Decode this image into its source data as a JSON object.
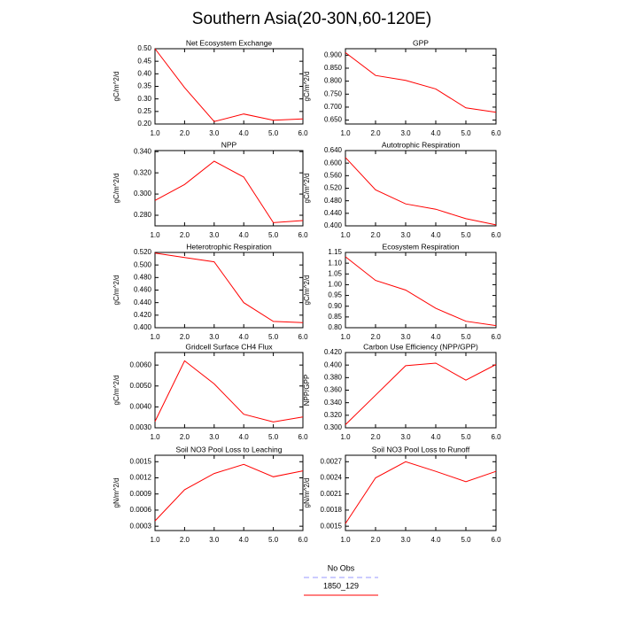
{
  "title": "Southern Asia(20-30N,60-120E)",
  "legend": [
    {
      "name": "No Obs",
      "color": "#9999ff",
      "dash": true
    },
    {
      "name": "1850_129",
      "color": "#ff0000",
      "dash": false
    }
  ],
  "chart_data": [
    {
      "type": "line",
      "title": "Net Ecosystem Exchange",
      "y_label": "gC/m^2/d",
      "color": "#ff0000",
      "x": [
        1,
        2,
        3,
        4,
        5,
        6
      ],
      "values": [
        0.5,
        0.345,
        0.21,
        0.24,
        0.215,
        0.22
      ],
      "xlim": [
        1,
        6
      ],
      "xticks": [
        {
          "value": 1,
          "label": "1.0"
        },
        {
          "value": 2,
          "label": "2.0"
        },
        {
          "value": 3,
          "label": "3.0"
        },
        {
          "value": 4,
          "label": "4.0"
        },
        {
          "value": 5,
          "label": "5.0"
        },
        {
          "value": 6,
          "label": "6.0"
        }
      ],
      "ylim": [
        0.2,
        0.5
      ],
      "yticks": [
        {
          "value": 0.2,
          "label": "0.20"
        },
        0.25,
        {
          "value": 0.3,
          "label": "0.30"
        },
        0.35,
        {
          "value": 0.4,
          "label": "0.40"
        },
        0.45,
        {
          "value": 0.5,
          "label": "0.50"
        }
      ]
    },
    {
      "type": "line",
      "title": "GPP",
      "y_label": "gC/m^2/d",
      "color": "#ff0000",
      "x": [
        1,
        2,
        3,
        4,
        5,
        6
      ],
      "values": [
        0.91,
        0.822,
        0.803,
        0.77,
        0.697,
        0.68
      ],
      "xlim": [
        1,
        6
      ],
      "xticks": [
        {
          "value": 1,
          "label": "1.0"
        },
        {
          "value": 2,
          "label": "2.0"
        },
        {
          "value": 3,
          "label": "3.0"
        },
        {
          "value": 4,
          "label": "4.0"
        },
        {
          "value": 5,
          "label": "5.0"
        },
        {
          "value": 6,
          "label": "6.0"
        }
      ],
      "ylim": [
        0.635,
        0.925
      ],
      "yticks": [
        {
          "value": 0.65,
          "label": "0.650"
        },
        {
          "value": 0.7,
          "label": "0.700"
        },
        {
          "value": 0.75,
          "label": "0.750"
        },
        {
          "value": 0.8,
          "label": "0.800"
        },
        {
          "value": 0.85,
          "label": "0.850"
        },
        {
          "value": 0.9,
          "label": "0.900"
        }
      ]
    },
    {
      "type": "line",
      "title": "NPP",
      "y_label": "gC/m^2/d",
      "color": "#ff0000",
      "x": [
        1,
        2,
        3,
        4,
        5,
        6
      ],
      "values": [
        0.294,
        0.309,
        0.331,
        0.316,
        0.273,
        0.275
      ],
      "xlim": [
        1,
        6
      ],
      "xticks": [
        {
          "value": 1,
          "label": "1.0"
        },
        {
          "value": 2,
          "label": "2.0"
        },
        {
          "value": 3,
          "label": "3.0"
        },
        {
          "value": 4,
          "label": "4.0"
        },
        {
          "value": 5,
          "label": "5.0"
        },
        {
          "value": 6,
          "label": "6.0"
        }
      ],
      "ylim": [
        0.27,
        0.341
      ],
      "yticks": [
        {
          "value": 0.28,
          "label": "0.280"
        },
        {
          "value": 0.3,
          "label": "0.300"
        },
        {
          "value": 0.32,
          "label": "0.320"
        },
        {
          "value": 0.34,
          "label": "0.340"
        }
      ]
    },
    {
      "type": "line",
      "title": "Autotrophic Respiration",
      "y_label": "gC/m^2/d",
      "color": "#ff0000",
      "x": [
        1,
        2,
        3,
        4,
        5,
        6
      ],
      "values": [
        0.618,
        0.515,
        0.47,
        0.453,
        0.423,
        0.403
      ],
      "xlim": [
        1,
        6
      ],
      "xticks": [
        {
          "value": 1,
          "label": "1.0"
        },
        {
          "value": 2,
          "label": "2.0"
        },
        {
          "value": 3,
          "label": "3.0"
        },
        {
          "value": 4,
          "label": "4.0"
        },
        {
          "value": 5,
          "label": "5.0"
        },
        {
          "value": 6,
          "label": "6.0"
        }
      ],
      "ylim": [
        0.4,
        0.64
      ],
      "yticks": [
        {
          "value": 0.4,
          "label": "0.400"
        },
        {
          "value": 0.44,
          "label": "0.440"
        },
        {
          "value": 0.48,
          "label": "0.480"
        },
        {
          "value": 0.52,
          "label": "0.520"
        },
        {
          "value": 0.56,
          "label": "0.560"
        },
        {
          "value": 0.6,
          "label": "0.600"
        },
        {
          "value": 0.64,
          "label": "0.640"
        }
      ]
    },
    {
      "type": "line",
      "title": "Heterotrophic Respiration",
      "y_label": "gC/m^2/d",
      "color": "#ff0000",
      "x": [
        1,
        2,
        3,
        4,
        5,
        6
      ],
      "values": [
        0.519,
        0.512,
        0.505,
        0.44,
        0.41,
        0.408
      ],
      "xlim": [
        1,
        6
      ],
      "xticks": [
        {
          "value": 1,
          "label": "1.0"
        },
        {
          "value": 2,
          "label": "2.0"
        },
        {
          "value": 3,
          "label": "3.0"
        },
        {
          "value": 4,
          "label": "4.0"
        },
        {
          "value": 5,
          "label": "5.0"
        },
        {
          "value": 6,
          "label": "6.0"
        }
      ],
      "ylim": [
        0.4,
        0.52
      ],
      "yticks": [
        {
          "value": 0.4,
          "label": "0.400"
        },
        {
          "value": 0.42,
          "label": "0.420"
        },
        {
          "value": 0.44,
          "label": "0.440"
        },
        {
          "value": 0.46,
          "label": "0.460"
        },
        {
          "value": 0.48,
          "label": "0.480"
        },
        {
          "value": 0.5,
          "label": "0.500"
        },
        {
          "value": 0.52,
          "label": "0.520"
        }
      ]
    },
    {
      "type": "line",
      "title": "Ecosystem Respiration",
      "y_label": "gC/m^2/d",
      "color": "#ff0000",
      "x": [
        1,
        2,
        3,
        4,
        5,
        6
      ],
      "values": [
        1.13,
        1.02,
        0.975,
        0.89,
        0.83,
        0.81
      ],
      "xlim": [
        1,
        6
      ],
      "xticks": [
        {
          "value": 1,
          "label": "1.0"
        },
        {
          "value": 2,
          "label": "2.0"
        },
        {
          "value": 3,
          "label": "3.0"
        },
        {
          "value": 4,
          "label": "4.0"
        },
        {
          "value": 5,
          "label": "5.0"
        },
        {
          "value": 6,
          "label": "6.0"
        }
      ],
      "ylim": [
        0.8,
        1.15
      ],
      "yticks": [
        {
          "value": 0.8,
          "label": "0.80"
        },
        0.85,
        {
          "value": 0.9,
          "label": "0.90"
        },
        0.95,
        {
          "value": 1,
          "label": "1.00"
        },
        1.05,
        {
          "value": 1.1,
          "label": "1.10"
        },
        1.15
      ]
    },
    {
      "type": "line",
      "title": "Gridcell Surface CH4 Flux",
      "y_label": "gC/m^2/d",
      "color": "#ff0000",
      "x": [
        1,
        2,
        3,
        4,
        5,
        6
      ],
      "values": [
        0.0033,
        0.0062,
        0.0051,
        0.00365,
        0.00328,
        0.00352
      ],
      "xlim": [
        1,
        6
      ],
      "xticks": [
        {
          "value": 1,
          "label": "1.0"
        },
        {
          "value": 2,
          "label": "2.0"
        },
        {
          "value": 3,
          "label": "3.0"
        },
        {
          "value": 4,
          "label": "4.0"
        },
        {
          "value": 5,
          "label": "5.0"
        },
        {
          "value": 6,
          "label": "6.0"
        }
      ],
      "ylim": [
        0.003,
        0.0066
      ],
      "yticks": [
        {
          "value": 0.003,
          "label": "0.0030"
        },
        {
          "value": 0.004,
          "label": "0.0040"
        },
        {
          "value": 0.005,
          "label": "0.0050"
        },
        {
          "value": 0.006,
          "label": "0.0060"
        }
      ]
    },
    {
      "type": "line",
      "title": "Carbon Use Efficiency (NPP/GPP)",
      "y_label": "NPP/GPP",
      "color": "#ff0000",
      "x": [
        1,
        2,
        3,
        4,
        5,
        6
      ],
      "values": [
        0.305,
        0.352,
        0.399,
        0.403,
        0.376,
        0.401
      ],
      "xlim": [
        1,
        6
      ],
      "xticks": [
        {
          "value": 1,
          "label": "1.0"
        },
        {
          "value": 2,
          "label": "2.0"
        },
        {
          "value": 3,
          "label": "3.0"
        },
        {
          "value": 4,
          "label": "4.0"
        },
        {
          "value": 5,
          "label": "5.0"
        },
        {
          "value": 6,
          "label": "6.0"
        }
      ],
      "ylim": [
        0.3,
        0.42
      ],
      "yticks": [
        {
          "value": 0.3,
          "label": "0.300"
        },
        {
          "value": 0.32,
          "label": "0.320"
        },
        {
          "value": 0.34,
          "label": "0.340"
        },
        {
          "value": 0.36,
          "label": "0.360"
        },
        {
          "value": 0.38,
          "label": "0.380"
        },
        {
          "value": 0.4,
          "label": "0.400"
        },
        {
          "value": 0.42,
          "label": "0.420"
        }
      ]
    },
    {
      "type": "line",
      "title": "Soil NO3 Pool Loss to Leaching",
      "y_label": "gN/m^2/d",
      "color": "#ff0000",
      "x": [
        1,
        2,
        3,
        4,
        5,
        6
      ],
      "values": [
        0.0004,
        0.00098,
        0.00128,
        0.00145,
        0.00122,
        0.00133
      ],
      "xlim": [
        1,
        6
      ],
      "xticks": [
        {
          "value": 1,
          "label": "1.0"
        },
        {
          "value": 2,
          "label": "2.0"
        },
        {
          "value": 3,
          "label": "3.0"
        },
        {
          "value": 4,
          "label": "4.0"
        },
        {
          "value": 5,
          "label": "5.0"
        },
        {
          "value": 6,
          "label": "6.0"
        }
      ],
      "ylim": [
        0.00022,
        0.00162
      ],
      "yticks": [
        {
          "value": 0.0003,
          "label": "0.0003"
        },
        {
          "value": 0.0006,
          "label": "0.0006"
        },
        {
          "value": 0.0009,
          "label": "0.0009"
        },
        {
          "value": 0.0012,
          "label": "0.0012"
        },
        {
          "value": 0.0015,
          "label": "0.0015"
        }
      ]
    },
    {
      "type": "line",
      "title": "Soil NO3 Pool Loss to Runoff",
      "y_label": "gN/m^2/d",
      "color": "#ff0000",
      "x": [
        1,
        2,
        3,
        4,
        5,
        6
      ],
      "values": [
        0.00155,
        0.0024,
        0.0027,
        0.00252,
        0.00233,
        0.00252
      ],
      "xlim": [
        1,
        6
      ],
      "xticks": [
        {
          "value": 1,
          "label": "1.0"
        },
        {
          "value": 2,
          "label": "2.0"
        },
        {
          "value": 3,
          "label": "3.0"
        },
        {
          "value": 4,
          "label": "4.0"
        },
        {
          "value": 5,
          "label": "5.0"
        },
        {
          "value": 6,
          "label": "6.0"
        }
      ],
      "ylim": [
        0.00142,
        0.00282
      ],
      "yticks": [
        {
          "value": 0.0015,
          "label": "0.0015"
        },
        {
          "value": 0.0018,
          "label": "0.0018"
        },
        {
          "value": 0.0021,
          "label": "0.0021"
        },
        {
          "value": 0.0024,
          "label": "0.0024"
        },
        {
          "value": 0.0027,
          "label": "0.0027"
        }
      ]
    }
  ]
}
